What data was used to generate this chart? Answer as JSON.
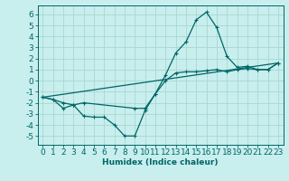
{
  "xlabel": "Humidex (Indice chaleur)",
  "bg_color": "#c8eeee",
  "grid_color": "#a8d8d0",
  "line_color": "#006666",
  "xlim": [
    -0.5,
    23.5
  ],
  "ylim": [
    -5.8,
    6.8
  ],
  "xticks": [
    0,
    1,
    2,
    3,
    4,
    5,
    6,
    7,
    8,
    9,
    10,
    11,
    12,
    13,
    14,
    15,
    16,
    17,
    18,
    19,
    20,
    21,
    22,
    23
  ],
  "yticks": [
    -5,
    -4,
    -3,
    -2,
    -1,
    0,
    1,
    2,
    3,
    4,
    5,
    6
  ],
  "line1_x": [
    0,
    1,
    2,
    3,
    4,
    5,
    6,
    7,
    8,
    9,
    10,
    11,
    12,
    13,
    14,
    15,
    16,
    17,
    18,
    19,
    20,
    21,
    22,
    23
  ],
  "line1_y": [
    -1.5,
    -1.7,
    -2.5,
    -2.2,
    -3.2,
    -3.3,
    -3.3,
    -4.0,
    -5.0,
    -5.0,
    -2.7,
    -1.2,
    0.5,
    2.5,
    3.5,
    5.5,
    6.2,
    4.8,
    2.2,
    1.2,
    1.3,
    1.0,
    1.0,
    1.6
  ],
  "line2_x": [
    0,
    1,
    2,
    3,
    4,
    9,
    10,
    11,
    12,
    13,
    14,
    15,
    16,
    17,
    18,
    19,
    20,
    21,
    22,
    23
  ],
  "line2_y": [
    -1.5,
    -1.7,
    -2.0,
    -2.2,
    -2.0,
    -2.5,
    -2.5,
    -1.2,
    0.0,
    0.7,
    0.8,
    0.8,
    0.9,
    1.0,
    0.8,
    1.0,
    1.1,
    1.0,
    1.0,
    1.6
  ],
  "line3_x": [
    0,
    23
  ],
  "line3_y": [
    -1.5,
    1.6
  ],
  "font_size": 6.5,
  "lw": 0.9,
  "marker_size": 3.0
}
